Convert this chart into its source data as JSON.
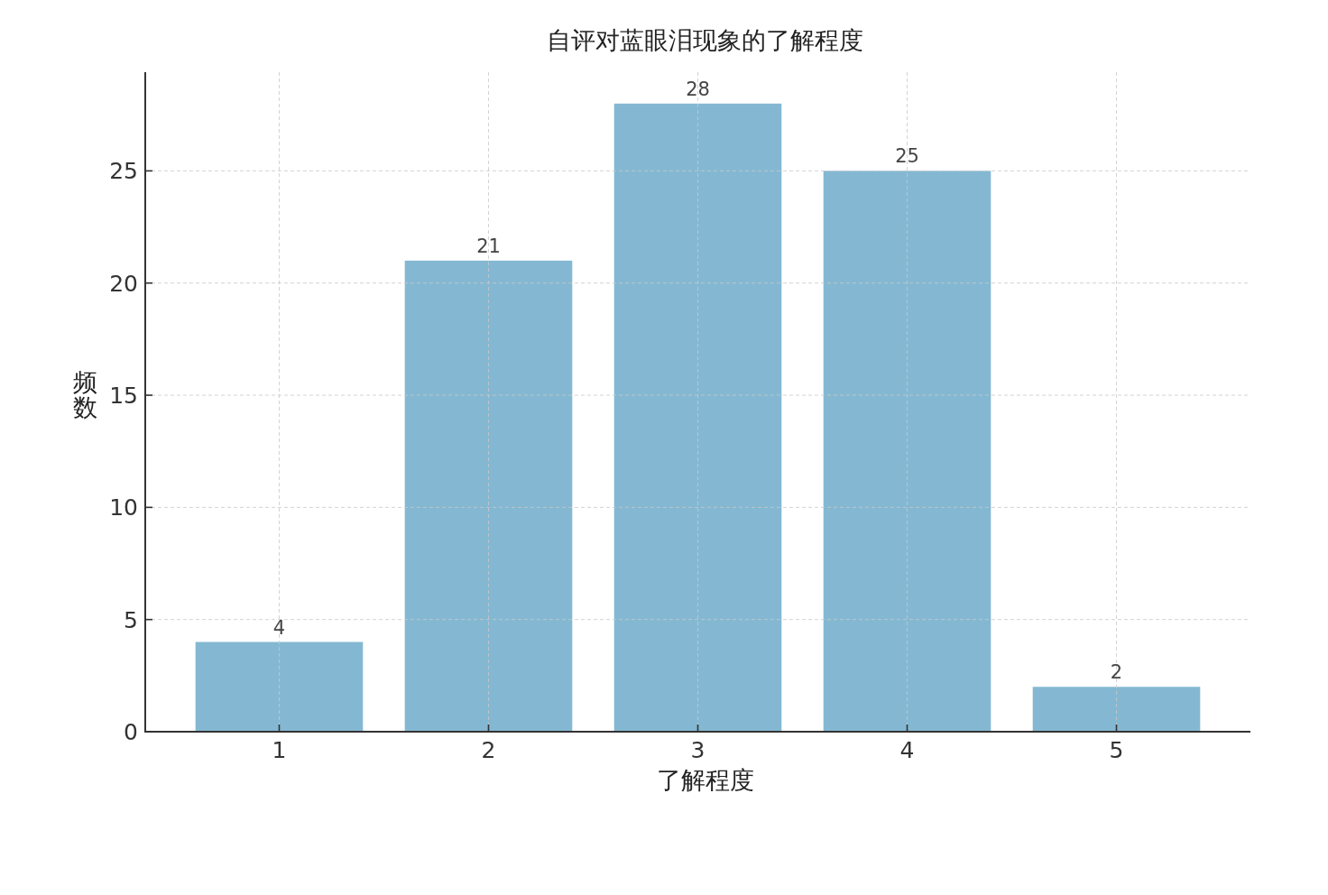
{
  "chart_data": {
    "type": "bar",
    "title": "自评对蓝眼泪现象的了解程度",
    "xlabel": "了解程度",
    "ylabel": "频数",
    "categories": [
      "1",
      "2",
      "3",
      "4",
      "5"
    ],
    "values": [
      4,
      21,
      28,
      25,
      2
    ],
    "color": "#84b8d2",
    "ylim": [
      0,
      29.4
    ],
    "yticks": [
      0,
      5,
      10,
      15,
      20,
      25
    ],
    "grid": true,
    "data_labels": true
  }
}
